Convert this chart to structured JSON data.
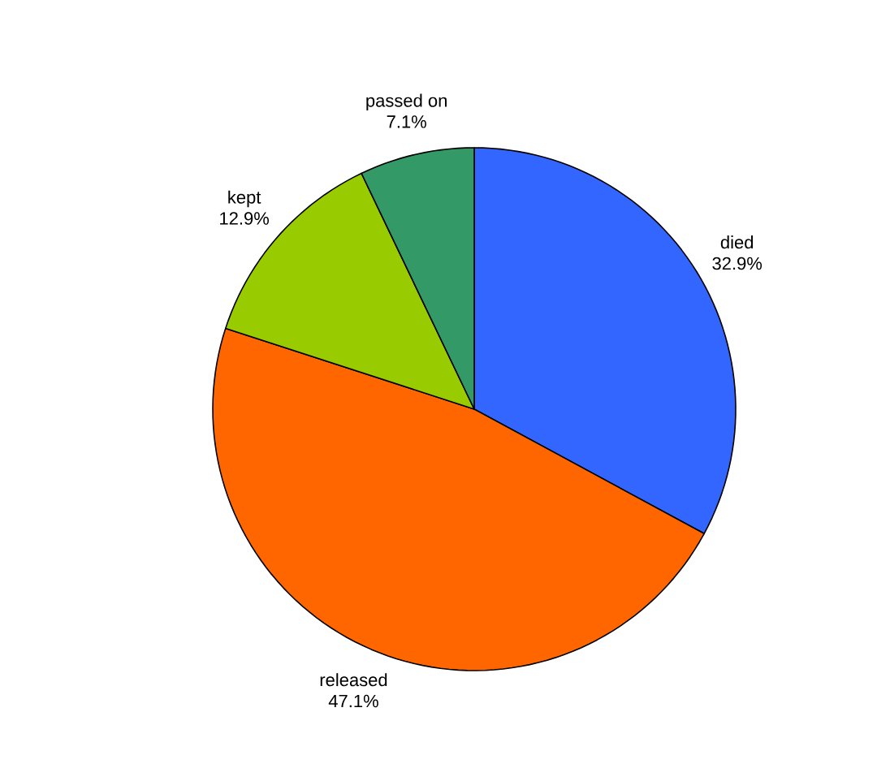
{
  "chart_data": {
    "type": "pie",
    "categories": [
      "died",
      "released",
      "kept",
      "passed on"
    ],
    "values": [
      32.9,
      47.1,
      12.9,
      7.1
    ],
    "value_labels": [
      "32.9%",
      "47.1%",
      "12.9%",
      "7.1%"
    ],
    "colors": [
      "#3366ff",
      "#ff6600",
      "#99cc00",
      "#339966"
    ]
  }
}
